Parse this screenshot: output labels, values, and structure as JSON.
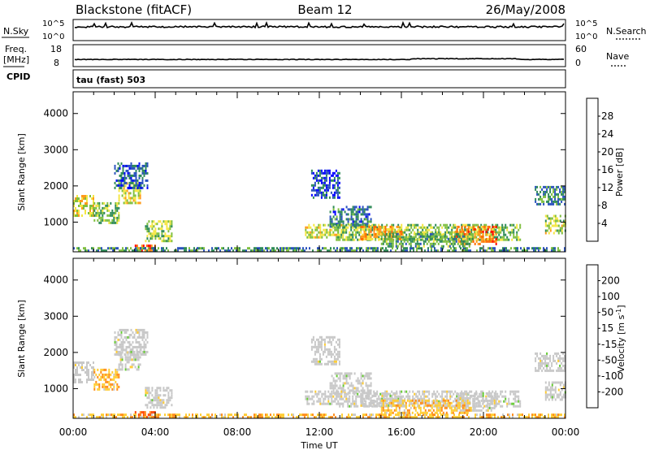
{
  "header": {
    "station": "Blackstone (fitACF)",
    "beam": "Beam 12",
    "date": "26/May/2008"
  },
  "summary_panels": {
    "nsky_label": "N.Sky",
    "nsearch_label": "N.Search",
    "noise_ticks_left": [
      "10^5",
      "10^0"
    ],
    "noise_ticks_right": [
      "10^5",
      "10^0"
    ],
    "freq_label_line1": "Freq.",
    "freq_label_line2": "[MHz]",
    "freq_ticks": [
      "18",
      "8"
    ],
    "nave_ticks": [
      "60",
      "0"
    ],
    "nave_label": "Nave",
    "cpid_label": "CPID",
    "cpid_text": "tau (fast) 503"
  },
  "colors": {
    "power_scale": [
      "#0000ff",
      "#2a52be",
      "#2e8b57",
      "#7fbf3f",
      "#f5e642",
      "#ff9a1a",
      "#ff6a00",
      "#ff0000"
    ],
    "velocity_scale": [
      "#0000ff",
      "#2a52be",
      "#2e8b57",
      "#66cc33",
      "#c8c8c8",
      "#ffcc33",
      "#ff8c1a",
      "#ff4500",
      "#ff0000"
    ],
    "ground_scatter": "#c8c8c8"
  },
  "chart_data": [
    {
      "type": "heatmap",
      "title": "Power",
      "ylabel": "Slant Range [km]",
      "ylim": [
        180,
        4600
      ],
      "yticks": [
        "4000",
        "3000",
        "2000",
        "1000"
      ],
      "xlabel": "Time UT",
      "xticks": [
        "00:00",
        "04:00",
        "08:00",
        "12:00",
        "16:00",
        "20:00",
        "00:00"
      ],
      "xlim_hours": [
        0,
        24
      ],
      "colorbar_label": "Power [dB]",
      "colorbar_ticks": [
        "28",
        "24",
        "20",
        "16",
        "12",
        "8",
        "4"
      ],
      "colorbar_range": [
        0,
        32
      ],
      "echo_regions": [
        {
          "t": [
            0.0,
            1.0
          ],
          "range": [
            1150,
            1750
          ],
          "level": 18
        },
        {
          "t": [
            1.0,
            2.2
          ],
          "range": [
            950,
            1550
          ],
          "level": 13
        },
        {
          "t": [
            2.2,
            3.3
          ],
          "range": [
            1500,
            2100
          ],
          "level": 17
        },
        {
          "t": [
            2.0,
            3.6
          ],
          "range": [
            1950,
            2650
          ],
          "level": 7
        },
        {
          "t": [
            3.5,
            4.8
          ],
          "range": [
            450,
            1050
          ],
          "level": 15
        },
        {
          "t": [
            3.0,
            4.0
          ],
          "range": [
            180,
            380
          ],
          "level": 26
        },
        {
          "t": [
            0.0,
            24.0
          ],
          "range": [
            180,
            310
          ],
          "level": 10
        },
        {
          "t": [
            11.6,
            13.0
          ],
          "range": [
            1650,
            2450
          ],
          "level": 6
        },
        {
          "t": [
            12.5,
            14.5
          ],
          "range": [
            900,
            1450
          ],
          "level": 8
        },
        {
          "t": [
            11.3,
            13.2
          ],
          "range": [
            600,
            950
          ],
          "level": 17
        },
        {
          "t": [
            12.8,
            21.8
          ],
          "range": [
            500,
            950
          ],
          "level": 14
        },
        {
          "t": [
            14.0,
            16.0
          ],
          "range": [
            500,
            900
          ],
          "level": 22
        },
        {
          "t": [
            18.6,
            20.6
          ],
          "range": [
            400,
            900
          ],
          "level": 24
        },
        {
          "t": [
            15.0,
            19.5
          ],
          "range": [
            300,
            700
          ],
          "level": 12
        },
        {
          "t": [
            22.5,
            24.0
          ],
          "range": [
            1500,
            2000
          ],
          "level": 9
        },
        {
          "t": [
            23.0,
            24.0
          ],
          "range": [
            700,
            1200
          ],
          "level": 16
        }
      ]
    },
    {
      "type": "heatmap",
      "title": "Velocity",
      "ylabel": "Slant Range [km]",
      "ylim": [
        180,
        4600
      ],
      "yticks": [
        "4000",
        "3000",
        "2000",
        "1000"
      ],
      "xlabel": "Time UT",
      "xticks": [
        "00:00",
        "04:00",
        "08:00",
        "12:00",
        "16:00",
        "20:00",
        "00:00"
      ],
      "xlim_hours": [
        0,
        24
      ],
      "colorbar_label": "Velocity [m s^-1]",
      "colorbar_ticks": [
        "200",
        "100",
        "50",
        "15",
        "-15",
        "-50",
        "-100",
        "-200"
      ],
      "colorbar_range": [
        -250,
        250
      ],
      "echo_regions": [
        {
          "t": [
            0.0,
            1.0
          ],
          "range": [
            1150,
            1750
          ],
          "velocity": 0
        },
        {
          "t": [
            1.0,
            2.2
          ],
          "range": [
            950,
            1550
          ],
          "velocity": -40
        },
        {
          "t": [
            2.2,
            3.3
          ],
          "range": [
            1500,
            2100
          ],
          "velocity": 0
        },
        {
          "t": [
            2.0,
            3.6
          ],
          "range": [
            1950,
            2650
          ],
          "velocity": 0
        },
        {
          "t": [
            3.5,
            4.8
          ],
          "range": [
            450,
            1050
          ],
          "velocity": 0
        },
        {
          "t": [
            3.0,
            4.0
          ],
          "range": [
            180,
            380
          ],
          "velocity": -120
        },
        {
          "t": [
            0.0,
            24.0
          ],
          "range": [
            180,
            310
          ],
          "velocity": -40
        },
        {
          "t": [
            11.6,
            13.0
          ],
          "range": [
            1650,
            2450
          ],
          "velocity": 0
        },
        {
          "t": [
            12.5,
            14.5
          ],
          "range": [
            900,
            1450
          ],
          "velocity": 0
        },
        {
          "t": [
            11.3,
            13.2
          ],
          "range": [
            600,
            950
          ],
          "velocity": 0
        },
        {
          "t": [
            12.8,
            21.8
          ],
          "range": [
            500,
            950
          ],
          "velocity": 0
        },
        {
          "t": [
            14.0,
            16.0
          ],
          "range": [
            500,
            900
          ],
          "velocity": 0
        },
        {
          "t": [
            18.6,
            20.6
          ],
          "range": [
            400,
            900
          ],
          "velocity": 0
        },
        {
          "t": [
            15.0,
            19.5
          ],
          "range": [
            300,
            700
          ],
          "velocity": -40
        },
        {
          "t": [
            22.5,
            24.0
          ],
          "range": [
            1500,
            2000
          ],
          "velocity": 0
        },
        {
          "t": [
            23.0,
            24.0
          ],
          "range": [
            700,
            1200
          ],
          "velocity": 0
        }
      ]
    }
  ]
}
